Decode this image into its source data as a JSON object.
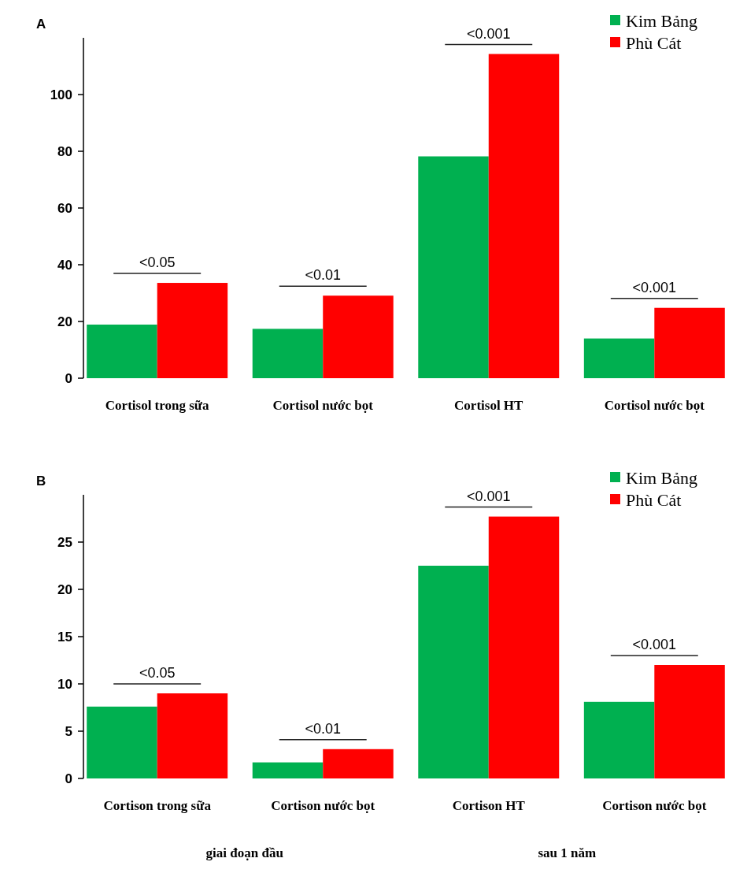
{
  "chart_data": [
    {
      "type": "bar",
      "title": "A",
      "categories": [
        "Cortisol trong sữa",
        "Cortisol nước bọt",
        "Cortisol HT",
        "Cortisol nước bọt"
      ],
      "series": [
        {
          "name": "Kim Bảng",
          "color": "#00b050",
          "values": [
            18.9,
            17.4,
            78.2,
            14
          ]
        },
        {
          "name": "Phù Cát",
          "color": "#ff0000",
          "values": [
            33.6,
            29.1,
            114.3,
            24.8
          ]
        }
      ],
      "ylim": [
        0,
        120
      ],
      "yticks": [
        0,
        20,
        40,
        60,
        80,
        100
      ],
      "legend": "top right",
      "annotations": [
        "<0.05",
        "<0.01",
        "<0.001",
        "<0.001"
      ]
    },
    {
      "type": "bar",
      "title": "B",
      "categories": [
        "Cortison trong sữa",
        "Cortison nước bọt",
        "Cortison HT",
        "Cortison nước bọt"
      ],
      "series": [
        {
          "name": "Kim Bảng",
          "color": "#00b050",
          "values": [
            7.6,
            1.7,
            22.5,
            8.1
          ]
        },
        {
          "name": "Phù Cát",
          "color": "#ff0000",
          "values": [
            9,
            3.1,
            27.7,
            12
          ]
        }
      ],
      "ylim": [
        0,
        30
      ],
      "yticks": [
        0,
        5,
        10,
        15,
        20,
        25
      ],
      "legend": "top right",
      "annotations": [
        "<0.05",
        "<0.01",
        "<0.001",
        "<0.001",
        "giai đoạn đầu",
        "sau 1 năm"
      ]
    }
  ]
}
